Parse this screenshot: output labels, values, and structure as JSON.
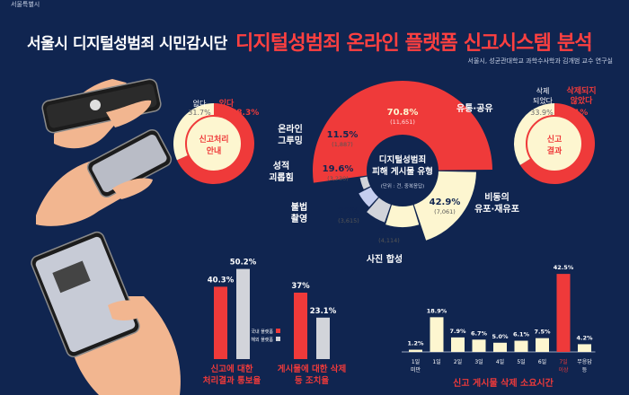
{
  "header": {
    "logo_text": "서울특별시",
    "title_left": "서울시 디지털성범죄 시민감시단",
    "title_right": "디지털성범죄 온라인 플랫폼 신고시스템 분석",
    "source": "서울시, 성균관대학교 과학수사학과 김개범 교수 연구실"
  },
  "colors": {
    "background": "#102550",
    "red": "#ef3a3a",
    "cream": "#fdf6d0",
    "gray": "#d2d4da",
    "lavender": "#c4cdef"
  },
  "chart_data": [
    {
      "type": "pie",
      "id": "report-guide",
      "title": "신고처리 안내",
      "slices": [
        {
          "label": "있다",
          "value": 68.3,
          "value_text": "68.3%"
        },
        {
          "label": "없다",
          "value": 31.7,
          "value_text": "31.7%"
        }
      ]
    },
    {
      "type": "pie",
      "id": "types",
      "title": "디지털성범죄 피해 게시물 유형",
      "subtitle": "(단위 : 건, 중복응답)",
      "slices": [
        {
          "label": "유통·공유",
          "pct": "70.8%",
          "count": "(11,651)",
          "value": 70.8
        },
        {
          "label": "비동의 유포·재유포",
          "pct": "42.9%",
          "count": "(7,061)",
          "value": 42.9
        },
        {
          "label": "사진 합성",
          "pct": "25%",
          "count": "(4,114)",
          "value": 25
        },
        {
          "label": "불법 촬영",
          "pct": "22%",
          "count": "(3,615)",
          "value": 22
        },
        {
          "label": "성적 괴롭힘",
          "pct": "19.6%",
          "count": "(3,230)",
          "value": 19.6
        },
        {
          "label": "온라인 그루밍",
          "pct": "11.5%",
          "count": "(1,887)",
          "value": 11.5
        }
      ]
    },
    {
      "type": "pie",
      "id": "report-result",
      "title": "신고 결과",
      "slices": [
        {
          "label": "삭제되지 않았다",
          "value": 66.1,
          "value_text": "66.1%"
        },
        {
          "label": "삭제 되었다",
          "value": 33.9,
          "value_text": "33.9%"
        }
      ]
    },
    {
      "type": "bar",
      "id": "domestic-foreign",
      "legend": [
        "국내 플랫폼",
        "해외 플랫폼"
      ],
      "categories": [
        "신고에 대한 처리결과 통보율",
        "게시물에 대한 삭제 등 조치율"
      ],
      "series": [
        {
          "name": "국내 플랫폼",
          "values": [
            40.3,
            37
          ],
          "labels": [
            "40.3%",
            "37%"
          ]
        },
        {
          "name": "해외 플랫폼",
          "values": [
            50.2,
            23.1
          ],
          "labels": [
            "50.2%",
            "23.1%"
          ]
        }
      ],
      "ylim": [
        0,
        55
      ]
    },
    {
      "type": "bar",
      "id": "delete-time",
      "title": "신고 게시물 삭제 소요시간",
      "categories": [
        "1일 미만",
        "1일",
        "2일",
        "3일",
        "4일",
        "5일",
        "6일",
        "7일 이상",
        "무응답 등"
      ],
      "values": [
        1.2,
        18.9,
        7.9,
        6.7,
        5.0,
        6.1,
        7.5,
        42.5,
        4.2
      ],
      "labels": [
        "1.2%",
        "18.9%",
        "7.9%",
        "6.7%",
        "5.0%",
        "6.1%",
        "7.5%",
        "42.5%",
        "4.2%"
      ],
      "highlight": 7,
      "ylim": [
        0,
        45
      ]
    }
  ]
}
